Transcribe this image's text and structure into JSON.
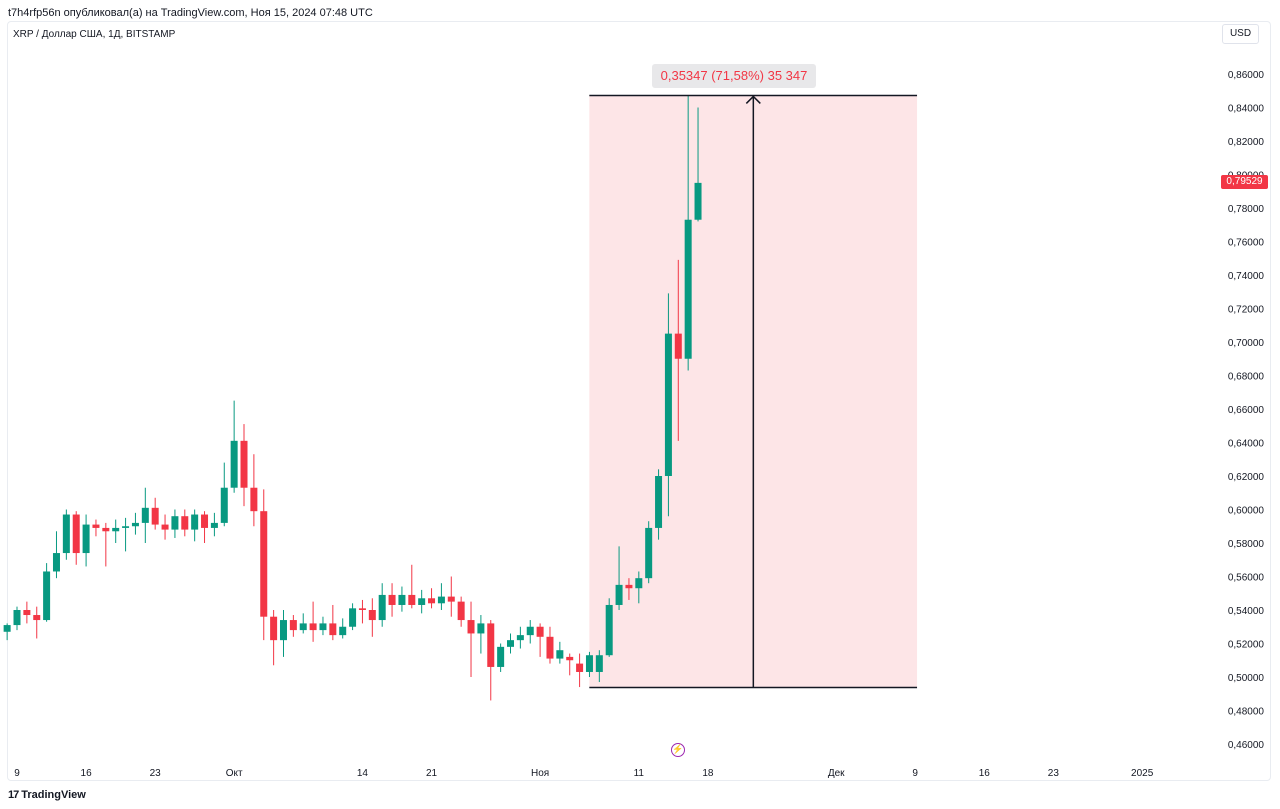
{
  "header": {
    "published_line": "t7h4rfp56n опубликовал(а) на TradingView.com, Ноя 15, 2024 07:48 UTC"
  },
  "symbol": {
    "title": "XRP / Доллар США, 1Д, BITSTAMP",
    "currency": "USD"
  },
  "footer": {
    "brand": "TradingView",
    "brand_mark": "17"
  },
  "measurement": {
    "label": "0,35347 (71,58%) 35 347",
    "from_price": 0.4937,
    "to_price": 0.8472,
    "from_index": 0,
    "to_index": 20,
    "arrow_index": 9
  },
  "last_price": {
    "label": "0,79529",
    "value": 0.79529,
    "color": "#f23645"
  },
  "colors": {
    "up": "#089981",
    "down": "#f23645",
    "range_fill": "#fde5e7"
  },
  "icons": {
    "events": "lightning-icon"
  },
  "chart_data": {
    "type": "candlestick",
    "title": "XRP / Доллар США, 1Д, BITSTAMP",
    "ylim": [
      0.45,
      0.87
    ],
    "y_ticks": [
      "0,86000",
      "0,84000",
      "0,82000",
      "0,80000",
      "0,78000",
      "0,76000",
      "0,74000",
      "0,72000",
      "0,70000",
      "0,68000",
      "0,66000",
      "0,64000",
      "0,62000",
      "0,60000",
      "0,58000",
      "0,56000",
      "0,54000",
      "0,52000",
      "0,50000",
      "0,48000",
      "0,46000"
    ],
    "y_tick_values": [
      0.86,
      0.84,
      0.82,
      0.8,
      0.78,
      0.76,
      0.74,
      0.72,
      0.7,
      0.68,
      0.66,
      0.64,
      0.62,
      0.6,
      0.58,
      0.56,
      0.54,
      0.52,
      0.5,
      0.48,
      0.46
    ],
    "x_ticks": [
      {
        "label": "9",
        "date": "2024-09-09"
      },
      {
        "label": "16",
        "date": "2024-09-16"
      },
      {
        "label": "23",
        "date": "2024-09-23"
      },
      {
        "label": "Окт",
        "date": "2024-10-01"
      },
      {
        "label": "14",
        "date": "2024-10-14"
      },
      {
        "label": "21",
        "date": "2024-10-21"
      },
      {
        "label": "Ноя",
        "date": "2024-11-01"
      },
      {
        "label": "11",
        "date": "2024-11-11"
      },
      {
        "label": "18",
        "date": "2024-11-18"
      },
      {
        "label": "Дек",
        "date": "2024-12-01"
      },
      {
        "label": "9",
        "date": "2024-12-09"
      },
      {
        "label": "16",
        "date": "2024-12-16"
      },
      {
        "label": "23",
        "date": "2024-12-23"
      },
      {
        "label": "2025",
        "date": "2025-01-01"
      }
    ],
    "candles": [
      {
        "date": "2024-09-08",
        "o": 0.527,
        "h": 0.532,
        "l": 0.522,
        "c": 0.531
      },
      {
        "date": "2024-09-09",
        "o": 0.531,
        "h": 0.542,
        "l": 0.528,
        "c": 0.54
      },
      {
        "date": "2024-09-10",
        "o": 0.54,
        "h": 0.545,
        "l": 0.532,
        "c": 0.537
      },
      {
        "date": "2024-09-11",
        "o": 0.537,
        "h": 0.542,
        "l": 0.523,
        "c": 0.534
      },
      {
        "date": "2024-09-12",
        "o": 0.534,
        "h": 0.568,
        "l": 0.533,
        "c": 0.563
      },
      {
        "date": "2024-09-13",
        "o": 0.563,
        "h": 0.587,
        "l": 0.559,
        "c": 0.574
      },
      {
        "date": "2024-09-14",
        "o": 0.574,
        "h": 0.6,
        "l": 0.57,
        "c": 0.597
      },
      {
        "date": "2024-09-15",
        "o": 0.597,
        "h": 0.599,
        "l": 0.567,
        "c": 0.574
      },
      {
        "date": "2024-09-16",
        "o": 0.574,
        "h": 0.597,
        "l": 0.566,
        "c": 0.591
      },
      {
        "date": "2024-09-17",
        "o": 0.591,
        "h": 0.594,
        "l": 0.584,
        "c": 0.589
      },
      {
        "date": "2024-09-18",
        "o": 0.589,
        "h": 0.592,
        "l": 0.566,
        "c": 0.587
      },
      {
        "date": "2024-09-19",
        "o": 0.587,
        "h": 0.594,
        "l": 0.58,
        "c": 0.589
      },
      {
        "date": "2024-09-20",
        "o": 0.589,
        "h": 0.595,
        "l": 0.575,
        "c": 0.59
      },
      {
        "date": "2024-09-21",
        "o": 0.59,
        "h": 0.598,
        "l": 0.585,
        "c": 0.592
      },
      {
        "date": "2024-09-22",
        "o": 0.592,
        "h": 0.613,
        "l": 0.58,
        "c": 0.601
      },
      {
        "date": "2024-09-23",
        "o": 0.601,
        "h": 0.607,
        "l": 0.588,
        "c": 0.591
      },
      {
        "date": "2024-09-24",
        "o": 0.591,
        "h": 0.597,
        "l": 0.582,
        "c": 0.588
      },
      {
        "date": "2024-09-25",
        "o": 0.588,
        "h": 0.6,
        "l": 0.583,
        "c": 0.596
      },
      {
        "date": "2024-09-26",
        "o": 0.596,
        "h": 0.6,
        "l": 0.584,
        "c": 0.588
      },
      {
        "date": "2024-09-27",
        "o": 0.588,
        "h": 0.6,
        "l": 0.581,
        "c": 0.597
      },
      {
        "date": "2024-09-28",
        "o": 0.597,
        "h": 0.599,
        "l": 0.58,
        "c": 0.589
      },
      {
        "date": "2024-09-29",
        "o": 0.589,
        "h": 0.598,
        "l": 0.584,
        "c": 0.592
      },
      {
        "date": "2024-09-30",
        "o": 0.592,
        "h": 0.628,
        "l": 0.59,
        "c": 0.613
      },
      {
        "date": "2024-10-01",
        "o": 0.613,
        "h": 0.665,
        "l": 0.61,
        "c": 0.641
      },
      {
        "date": "2024-10-02",
        "o": 0.641,
        "h": 0.651,
        "l": 0.602,
        "c": 0.613
      },
      {
        "date": "2024-10-03",
        "o": 0.613,
        "h": 0.633,
        "l": 0.59,
        "c": 0.599
      },
      {
        "date": "2024-10-04",
        "o": 0.599,
        "h": 0.612,
        "l": 0.522,
        "c": 0.536
      },
      {
        "date": "2024-10-05",
        "o": 0.536,
        "h": 0.54,
        "l": 0.507,
        "c": 0.522
      },
      {
        "date": "2024-10-06",
        "o": 0.522,
        "h": 0.54,
        "l": 0.512,
        "c": 0.534
      },
      {
        "date": "2024-10-07",
        "o": 0.534,
        "h": 0.537,
        "l": 0.524,
        "c": 0.528
      },
      {
        "date": "2024-10-08",
        "o": 0.528,
        "h": 0.538,
        "l": 0.526,
        "c": 0.532
      },
      {
        "date": "2024-10-09",
        "o": 0.532,
        "h": 0.545,
        "l": 0.521,
        "c": 0.528
      },
      {
        "date": "2024-10-10",
        "o": 0.528,
        "h": 0.536,
        "l": 0.525,
        "c": 0.532
      },
      {
        "date": "2024-10-11",
        "o": 0.532,
        "h": 0.543,
        "l": 0.522,
        "c": 0.525
      },
      {
        "date": "2024-10-12",
        "o": 0.525,
        "h": 0.535,
        "l": 0.523,
        "c": 0.53
      },
      {
        "date": "2024-10-13",
        "o": 0.53,
        "h": 0.544,
        "l": 0.528,
        "c": 0.541
      },
      {
        "date": "2024-10-14",
        "o": 0.541,
        "h": 0.546,
        "l": 0.532,
        "c": 0.54
      },
      {
        "date": "2024-10-15",
        "o": 0.54,
        "h": 0.547,
        "l": 0.524,
        "c": 0.534
      },
      {
        "date": "2024-10-16",
        "o": 0.534,
        "h": 0.556,
        "l": 0.53,
        "c": 0.549
      },
      {
        "date": "2024-10-17",
        "o": 0.549,
        "h": 0.556,
        "l": 0.536,
        "c": 0.543
      },
      {
        "date": "2024-10-18",
        "o": 0.543,
        "h": 0.554,
        "l": 0.539,
        "c": 0.549
      },
      {
        "date": "2024-10-19",
        "o": 0.549,
        "h": 0.567,
        "l": 0.541,
        "c": 0.543
      },
      {
        "date": "2024-10-20",
        "o": 0.543,
        "h": 0.552,
        "l": 0.538,
        "c": 0.547
      },
      {
        "date": "2024-10-21",
        "o": 0.547,
        "h": 0.553,
        "l": 0.541,
        "c": 0.544
      },
      {
        "date": "2024-10-22",
        "o": 0.544,
        "h": 0.556,
        "l": 0.54,
        "c": 0.548
      },
      {
        "date": "2024-10-23",
        "o": 0.548,
        "h": 0.56,
        "l": 0.536,
        "c": 0.545
      },
      {
        "date": "2024-10-24",
        "o": 0.545,
        "h": 0.548,
        "l": 0.53,
        "c": 0.534
      },
      {
        "date": "2024-10-25",
        "o": 0.534,
        "h": 0.545,
        "l": 0.5,
        "c": 0.526
      },
      {
        "date": "2024-10-26",
        "o": 0.526,
        "h": 0.537,
        "l": 0.514,
        "c": 0.532
      },
      {
        "date": "2024-10-27",
        "o": 0.532,
        "h": 0.534,
        "l": 0.486,
        "c": 0.506
      },
      {
        "date": "2024-10-28",
        "o": 0.506,
        "h": 0.52,
        "l": 0.503,
        "c": 0.518
      },
      {
        "date": "2024-10-29",
        "o": 0.518,
        "h": 0.526,
        "l": 0.514,
        "c": 0.522
      },
      {
        "date": "2024-10-30",
        "o": 0.522,
        "h": 0.53,
        "l": 0.517,
        "c": 0.525
      },
      {
        "date": "2024-10-31",
        "o": 0.525,
        "h": 0.534,
        "l": 0.52,
        "c": 0.53
      },
      {
        "date": "2024-11-01",
        "o": 0.53,
        "h": 0.532,
        "l": 0.512,
        "c": 0.524
      },
      {
        "date": "2024-11-02",
        "o": 0.524,
        "h": 0.53,
        "l": 0.508,
        "c": 0.511
      },
      {
        "date": "2024-11-03",
        "o": 0.511,
        "h": 0.521,
        "l": 0.508,
        "c": 0.516
      },
      {
        "date": "2024-11-04",
        "o": 0.512,
        "h": 0.514,
        "l": 0.501,
        "c": 0.51
      },
      {
        "date": "2024-11-05",
        "o": 0.508,
        "h": 0.514,
        "l": 0.494,
        "c": 0.503
      },
      {
        "date": "2024-11-06",
        "o": 0.503,
        "h": 0.515,
        "l": 0.5,
        "c": 0.513
      },
      {
        "date": "2024-11-07",
        "o": 0.503,
        "h": 0.516,
        "l": 0.497,
        "c": 0.513
      },
      {
        "date": "2024-11-08",
        "o": 0.513,
        "h": 0.547,
        "l": 0.512,
        "c": 0.543
      },
      {
        "date": "2024-11-09",
        "o": 0.543,
        "h": 0.578,
        "l": 0.54,
        "c": 0.555
      },
      {
        "date": "2024-11-10",
        "o": 0.555,
        "h": 0.559,
        "l": 0.546,
        "c": 0.553
      },
      {
        "date": "2024-11-11",
        "o": 0.553,
        "h": 0.563,
        "l": 0.544,
        "c": 0.559
      },
      {
        "date": "2024-11-12",
        "o": 0.559,
        "h": 0.593,
        "l": 0.556,
        "c": 0.589
      },
      {
        "date": "2024-11-13",
        "o": 0.589,
        "h": 0.624,
        "l": 0.582,
        "c": 0.62
      },
      {
        "date": "2024-11-14",
        "o": 0.62,
        "h": 0.729,
        "l": 0.596,
        "c": 0.705
      },
      {
        "date": "2024-11-15",
        "o": 0.705,
        "h": 0.749,
        "l": 0.641,
        "c": 0.69
      },
      {
        "date": "2024-11-16",
        "o": 0.69,
        "h": 0.847,
        "l": 0.683,
        "c": 0.773
      },
      {
        "date": "2024-11-17",
        "o": 0.773,
        "h": 0.84,
        "l": 0.772,
        "c": 0.795
      }
    ]
  }
}
